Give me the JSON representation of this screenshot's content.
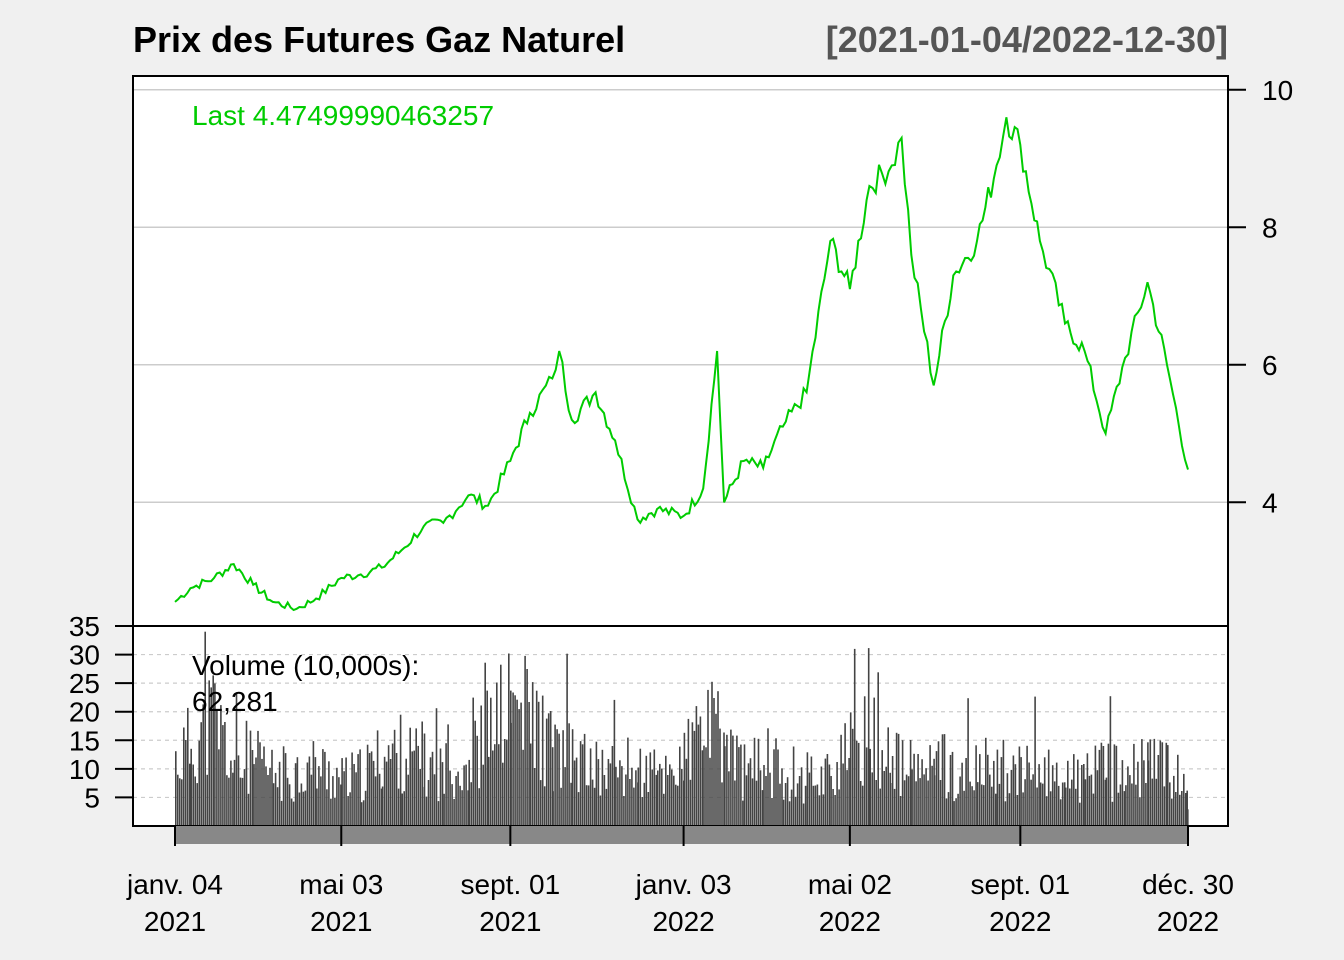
{
  "chart_data": {
    "type": "line",
    "title": "Prix des Futures Gaz Naturel",
    "date_range": "[2021-01-04/2022-12-30]",
    "last_label": "Last 4.47499990463257",
    "volume_label": "Volume (10,000s):",
    "volume_last": "62,281",
    "price_axis": {
      "ticks": [
        4,
        6,
        8,
        10
      ],
      "tick_labels": [
        "4",
        "6",
        "8",
        "10"
      ],
      "ylim": [
        2.2,
        10.2
      ],
      "grid": true,
      "position": "right"
    },
    "volume_axis": {
      "ticks": [
        5,
        10,
        15,
        20,
        25,
        30,
        35
      ],
      "tick_labels": [
        "5",
        "10",
        "15",
        "20",
        "25",
        "30",
        "35"
      ],
      "ylim": [
        0,
        35
      ],
      "grid": true,
      "position": "left"
    },
    "x_axis": {
      "range": [
        "2021-01-04",
        "2022-12-30"
      ],
      "ticks": [
        {
          "date": "2021-01-04",
          "line1": "janv. 04",
          "line2": "2021"
        },
        {
          "date": "2021-05-03",
          "line1": "mai 03",
          "line2": "2021"
        },
        {
          "date": "2021-09-01",
          "line1": "sept. 01",
          "line2": "2021"
        },
        {
          "date": "2022-01-03",
          "line1": "janv. 03",
          "line2": "2022"
        },
        {
          "date": "2022-05-02",
          "line1": "mai 02",
          "line2": "2022"
        },
        {
          "date": "2022-09-01",
          "line1": "sept. 01",
          "line2": "2022"
        },
        {
          "date": "2022-12-30",
          "line1": "déc. 30",
          "line2": "2022"
        }
      ]
    },
    "colors": {
      "price_line": "#00cc00",
      "last_label": "#00cc00",
      "volume_bars": "#444444",
      "volume_last": "#ff7f00",
      "grid": "#cccccc",
      "background": "#f0f0f0",
      "panel": "#ffffff"
    },
    "series": [
      {
        "x": [
          "2021-01-04",
          "2021-01-15",
          "2021-02-01",
          "2021-02-15",
          "2021-03-01",
          "2021-03-15",
          "2021-04-01",
          "2021-04-15",
          "2021-05-03",
          "2021-05-17",
          "2021-06-01",
          "2021-06-15",
          "2021-07-01",
          "2021-07-15",
          "2021-08-02",
          "2021-08-16",
          "2021-09-01",
          "2021-09-15",
          "2021-10-01",
          "2021-10-06",
          "2021-10-15",
          "2021-11-01",
          "2021-11-15",
          "2021-12-01",
          "2021-12-15",
          "2022-01-03",
          "2022-01-17",
          "2022-01-27",
          "2022-02-01",
          "2022-02-15",
          "2022-03-01",
          "2022-03-15",
          "2022-04-01",
          "2022-04-18",
          "2022-05-02",
          "2022-05-16",
          "2022-06-01",
          "2022-06-08",
          "2022-06-15",
          "2022-07-01",
          "2022-07-15",
          "2022-08-01",
          "2022-08-15",
          "2022-08-22",
          "2022-09-01",
          "2022-09-15",
          "2022-10-03",
          "2022-10-17",
          "2022-11-01",
          "2022-11-15",
          "2022-12-01",
          "2022-12-15",
          "2022-12-30"
        ],
        "y": [
          2.55,
          2.75,
          2.9,
          3.1,
          2.8,
          2.55,
          2.45,
          2.6,
          2.9,
          2.95,
          3.05,
          3.3,
          3.65,
          3.7,
          4.1,
          3.95,
          4.6,
          5.3,
          5.8,
          6.2,
          5.2,
          5.6,
          4.9,
          3.75,
          3.9,
          3.8,
          4.2,
          6.2,
          4.0,
          4.6,
          4.5,
          5.1,
          5.6,
          7.8,
          7.1,
          8.6,
          8.9,
          9.3,
          7.6,
          5.7,
          7.3,
          7.8,
          8.9,
          9.6,
          9.2,
          7.8,
          6.6,
          6.2,
          5.0,
          6.1,
          7.2,
          6.0,
          4.475
        ]
      }
    ],
    "volume": {
      "x": [
        "2021-01-04",
        "2021-01-15",
        "2021-02-01",
        "2021-02-15",
        "2021-03-01",
        "2021-03-15",
        "2021-04-01",
        "2021-04-15",
        "2021-05-03",
        "2021-05-17",
        "2021-06-01",
        "2021-06-15",
        "2021-07-01",
        "2021-07-15",
        "2021-08-02",
        "2021-08-16",
        "2021-09-01",
        "2021-09-15",
        "2021-10-01",
        "2021-10-15",
        "2021-11-01",
        "2021-11-15",
        "2021-12-01",
        "2021-12-15",
        "2022-01-03",
        "2022-01-17",
        "2022-02-01",
        "2022-02-15",
        "2022-03-01",
        "2022-03-15",
        "2022-04-01",
        "2022-04-18",
        "2022-05-02",
        "2022-05-16",
        "2022-06-01",
        "2022-06-15",
        "2022-07-01",
        "2022-07-15",
        "2022-08-01",
        "2022-08-15",
        "2022-09-01",
        "2022-09-15",
        "2022-10-03",
        "2022-10-17",
        "2022-11-01",
        "2022-11-15",
        "2022-12-01",
        "2022-12-15",
        "2022-12-30"
      ],
      "values": [
        14,
        18,
        24,
        12,
        14,
        11,
        12,
        13,
        10,
        11,
        15,
        16,
        13,
        12,
        14,
        20,
        26,
        24,
        16,
        15,
        12,
        13,
        12,
        11,
        14,
        22,
        18,
        12,
        13,
        12,
        11,
        12,
        16,
        20,
        14,
        12,
        13,
        11,
        12,
        13,
        11,
        12,
        10,
        11,
        12,
        11,
        13,
        14,
        6.2
      ]
    }
  }
}
